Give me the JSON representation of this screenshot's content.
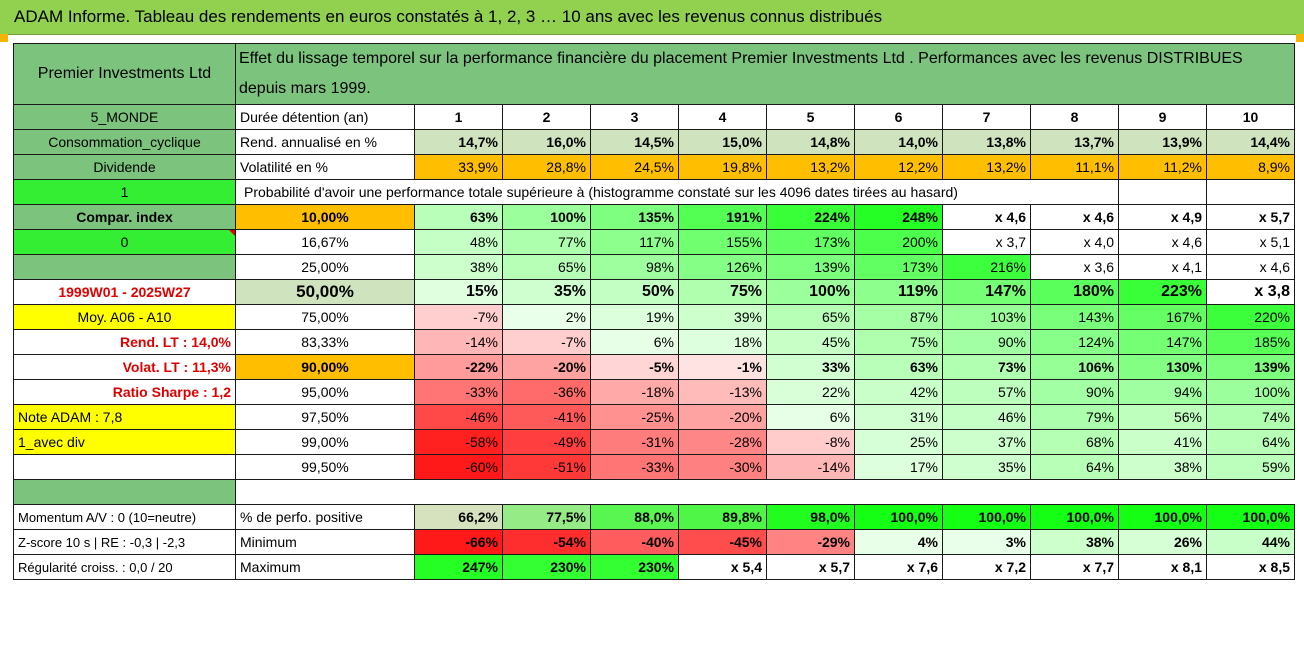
{
  "banner": "ADAM Informe. Tableau des rendements en euros constatés à 1, 2, 3 … 10 ans avec les revenus connus distribués",
  "fund_name": "Premier Investments Ltd",
  "description": "Effet du lissage temporel sur la performance financière du placement Premier Investments Ltd . Performances avec les revenus DISTRIBUES depuis mars 1999.",
  "left": {
    "zone": "5_MONDE",
    "sector": "Consommation_cyclique",
    "dividend": "Dividende",
    "one": "1",
    "compar": "Compar. index",
    "zero": "0",
    "period": "1999W01 - 2025W27",
    "moy": "Moy. A06 - A10",
    "rend_lt": "Rend. LT :    14,0%",
    "volat_lt": "Volat. LT :    11,3%",
    "sharpe": "Ratio Sharpe :    1,2",
    "note": "Note ADAM : 7,8",
    "div": "1_avec div",
    "momentum": "Momentum A/V : 0 (10=neutre)",
    "zscore": "Z-score 10 s | RE : -0,3 | -2,3",
    "regularite": "Régularité croiss. : 0,0 / 20"
  },
  "row_labels": {
    "duree": "Durée détention (an)",
    "rend": "Rend. annualisé en %",
    "volat": "Volatilité en %",
    "proba": "Probabilité d'avoir une performance totale supérieure à (histogramme constaté sur les 4096 dates tirées au hasard)",
    "perfo_pos": "% de perfo. positive",
    "minimum": "Minimum",
    "maximum": "Maximum"
  },
  "years": [
    "1",
    "2",
    "3",
    "4",
    "5",
    "6",
    "7",
    "8",
    "9",
    "10"
  ],
  "rend": [
    "14,7%",
    "16,0%",
    "14,5%",
    "15,0%",
    "14,8%",
    "14,0%",
    "13,8%",
    "13,7%",
    "13,9%",
    "14,4%"
  ],
  "volat": [
    "33,9%",
    "28,8%",
    "24,5%",
    "19,8%",
    "13,2%",
    "12,2%",
    "13,2%",
    "11,1%",
    "11,2%",
    "8,9%"
  ],
  "proba_rows": [
    {
      "pct": "10,00%",
      "values": [
        "63%",
        "100%",
        "135%",
        "191%",
        "224%",
        "248%",
        "x 4,6",
        "x 4,6",
        "x 4,9",
        "x 5,7"
      ]
    },
    {
      "pct": "16,67%",
      "values": [
        "48%",
        "77%",
        "117%",
        "155%",
        "173%",
        "200%",
        "x 3,7",
        "x 4,0",
        "x 4,6",
        "x 5,1"
      ]
    },
    {
      "pct": "25,00%",
      "values": [
        "38%",
        "65%",
        "98%",
        "126%",
        "139%",
        "173%",
        "216%",
        "x 3,6",
        "x 4,1",
        "x 4,6"
      ]
    },
    {
      "pct": "50,00%",
      "values": [
        "15%",
        "35%",
        "50%",
        "75%",
        "100%",
        "119%",
        "147%",
        "180%",
        "223%",
        "x 3,8"
      ]
    },
    {
      "pct": "75,00%",
      "values": [
        "-7%",
        "2%",
        "19%",
        "39%",
        "65%",
        "87%",
        "103%",
        "143%",
        "167%",
        "220%"
      ]
    },
    {
      "pct": "83,33%",
      "values": [
        "-14%",
        "-7%",
        "6%",
        "18%",
        "45%",
        "75%",
        "90%",
        "124%",
        "147%",
        "185%"
      ]
    },
    {
      "pct": "90,00%",
      "values": [
        "-22%",
        "-20%",
        "-5%",
        "-1%",
        "33%",
        "63%",
        "73%",
        "106%",
        "130%",
        "139%"
      ]
    },
    {
      "pct": "95,00%",
      "values": [
        "-33%",
        "-36%",
        "-18%",
        "-13%",
        "22%",
        "42%",
        "57%",
        "90%",
        "94%",
        "100%"
      ]
    },
    {
      "pct": "97,50%",
      "values": [
        "-46%",
        "-41%",
        "-25%",
        "-20%",
        "6%",
        "31%",
        "46%",
        "79%",
        "56%",
        "74%"
      ]
    },
    {
      "pct": "99,00%",
      "values": [
        "-58%",
        "-49%",
        "-31%",
        "-28%",
        "-8%",
        "25%",
        "37%",
        "68%",
        "41%",
        "64%"
      ]
    },
    {
      "pct": "99,50%",
      "values": [
        "-60%",
        "-51%",
        "-33%",
        "-30%",
        "-14%",
        "17%",
        "35%",
        "64%",
        "38%",
        "59%"
      ]
    }
  ],
  "perfo_pos": [
    "66,2%",
    "77,5%",
    "88,0%",
    "89,8%",
    "98,0%",
    "100,0%",
    "100,0%",
    "100,0%",
    "100,0%",
    "100,0%"
  ],
  "minimum": [
    "-66%",
    "-54%",
    "-40%",
    "-45%",
    "-29%",
    "4%",
    "3%",
    "38%",
    "26%",
    "44%"
  ],
  "maximum": [
    "247%",
    "230%",
    "230%",
    "x 5,4",
    "x 5,7",
    "x 7,6",
    "x 7,2",
    "x 7,7",
    "x 8,1",
    "x 8,5"
  ]
}
